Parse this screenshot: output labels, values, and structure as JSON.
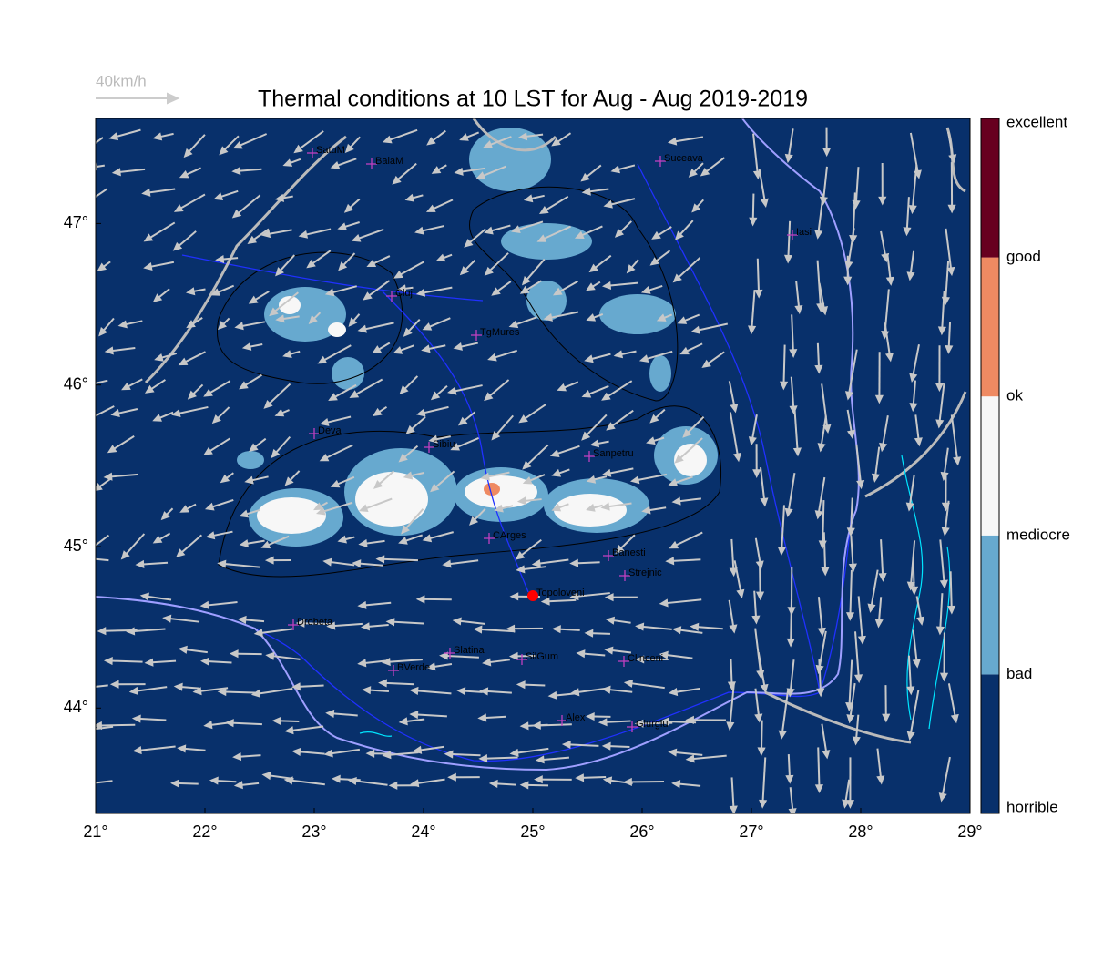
{
  "map": {
    "title": "Thermal conditions at 10 LST for Aug - Aug  2019-2019",
    "wind_reference": "40km/h",
    "lon_ticks": [
      {
        "value": 21,
        "label": "21°"
      },
      {
        "value": 22,
        "label": "22°"
      },
      {
        "value": 23,
        "label": "23°"
      },
      {
        "value": 24,
        "label": "24°"
      },
      {
        "value": 25,
        "label": "25°"
      },
      {
        "value": 26,
        "label": "26°"
      },
      {
        "value": 27,
        "label": "27°"
      },
      {
        "value": 28,
        "label": "28°"
      },
      {
        "value": 29,
        "label": "29°"
      }
    ],
    "lat_ticks": [
      {
        "value": 44,
        "label": "44°"
      },
      {
        "value": 45,
        "label": "45°"
      },
      {
        "value": 46,
        "label": "46°"
      },
      {
        "value": 47,
        "label": "47°"
      }
    ],
    "colorbar": {
      "labels": [
        "horrible",
        "bad",
        "mediocre",
        "ok",
        "good",
        "excellent"
      ],
      "colors": [
        "#08306b",
        "#67a9cf",
        "#f7f7f7",
        "#ef8a62",
        "#67001f"
      ]
    },
    "cities": [
      "SatuM",
      "BaiaM",
      "Suceava",
      "Iasi",
      "Cluj",
      "TgMures",
      "Deva",
      "Sibiu",
      "Sanpetru",
      "CArges",
      "Banesti",
      "Strejnic",
      "Topoloveni",
      "Drobeta",
      "Slatina",
      "SilGum",
      "Clinceni",
      "BVerde",
      "Alex",
      "Giurgiu"
    ]
  }
}
